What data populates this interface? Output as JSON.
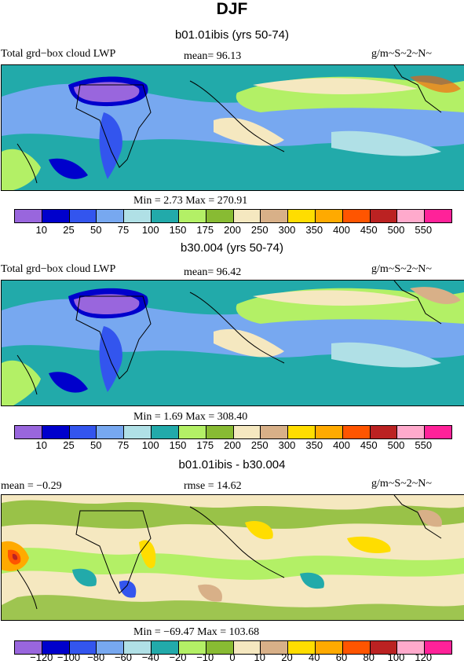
{
  "header": {
    "title": "DJF"
  },
  "colorbars": {
    "lwp_colors": [
      "#9966dd",
      "#0000cc",
      "#3355ee",
      "#77a8f0",
      "#b0e0e6",
      "#22aaaa",
      "#b3f066",
      "#88bb33",
      "#f5e8c0",
      "#d8b088",
      "#ffdd00",
      "#ffaa00",
      "#ff5500",
      "#bb2222",
      "#ffaacc",
      "#ff2299"
    ],
    "lwp_labels": [
      "10",
      "25",
      "50",
      "75",
      "100",
      "150",
      "175",
      "200",
      "250",
      "300",
      "350",
      "400",
      "450",
      "500",
      "550"
    ],
    "diff_colors": [
      "#9966dd",
      "#0000cc",
      "#3355ee",
      "#77a8f0",
      "#b0e0e6",
      "#22aaaa",
      "#b3f066",
      "#88bb33",
      "#f5e8c0",
      "#d8b088",
      "#ffdd00",
      "#ffaa00",
      "#ff5500",
      "#bb2222",
      "#ffaacc",
      "#ff2299"
    ],
    "diff_labels": [
      "−120",
      "−100",
      "−80",
      "−60",
      "−40",
      "−20",
      "−10",
      "0",
      "10",
      "20",
      "40",
      "60",
      "80",
      "100",
      "120"
    ]
  },
  "panels": [
    {
      "case": "b01.01ibis (yrs 50-74)",
      "left_label": "Total grd−box cloud LWP",
      "mean_text": "mean=  96.13",
      "units": "g/m~S~2~N~",
      "minmax": "Min =   2.73 Max = 270.91"
    },
    {
      "case": "b30.004 (yrs 50-74)",
      "left_label": "Total grd−box cloud LWP",
      "mean_text": "mean=  96.42",
      "units": "g/m~S~2~N~",
      "minmax": "Min =   1.69 Max = 308.40"
    },
    {
      "case": "b01.01ibis - b30.004",
      "left_label": "mean =  −0.29",
      "mean_text": "rmse =  14.62",
      "units": "g/m~S~2~N~",
      "minmax": "Min = −69.47 Max = 103.68"
    }
  ]
}
